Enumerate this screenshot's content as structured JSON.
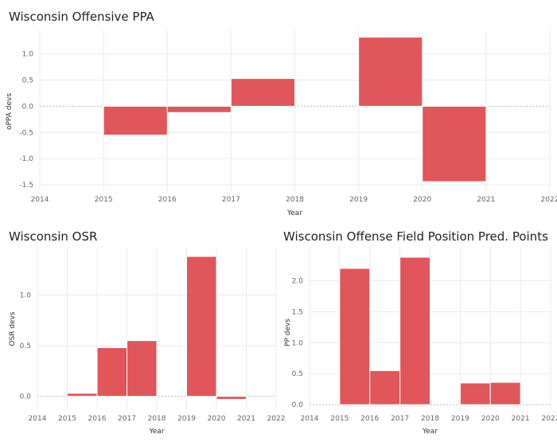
{
  "colors": {
    "bar": "#e0565b",
    "bar_edge": "#ffffff",
    "grid": "#ececec",
    "zero": "#bbbbbb"
  },
  "chart_data": [
    {
      "type": "bar",
      "title": "Wisconsin Offensive PPA",
      "xlabel": "Year",
      "ylabel": "oPPA devs",
      "x_ticks": [
        "2014",
        "2015",
        "2016",
        "2017",
        "2018",
        "2019",
        "2020",
        "2021",
        "2022"
      ],
      "y_ticks": [
        "-1.5",
        "-1.0",
        "-0.5",
        "0.0",
        "0.5",
        "1.0"
      ],
      "ylim": [
        -1.5,
        1.3
      ],
      "xlim": [
        2014,
        2022
      ],
      "grid": true,
      "bars": [
        {
          "year": 2015,
          "value": -0.55
        },
        {
          "year": 2016,
          "value": -0.12
        },
        {
          "year": 2017,
          "value": 0.53
        },
        {
          "year": 2019,
          "value": 1.32
        },
        {
          "year": 2020,
          "value": -1.44
        }
      ]
    },
    {
      "type": "bar",
      "title": "Wisconsin OSR",
      "xlabel": "Year",
      "ylabel": "OSR devs",
      "x_ticks": [
        "2014",
        "2015",
        "2016",
        "2017",
        "2018",
        "2019",
        "2020",
        "2021",
        "2022"
      ],
      "y_ticks": [
        "0.0",
        "0.5",
        "1.0"
      ],
      "ylim": [
        -0.05,
        1.38
      ],
      "xlim": [
        2014,
        2022
      ],
      "grid": true,
      "bars": [
        {
          "year": 2015,
          "value": 0.03
        },
        {
          "year": 2016,
          "value": 0.48
        },
        {
          "year": 2017,
          "value": 0.55
        },
        {
          "year": 2019,
          "value": 1.38
        },
        {
          "year": 2020,
          "value": -0.03
        }
      ]
    },
    {
      "type": "bar",
      "title": "Wisconsin Offense Field Position Pred. Points",
      "xlabel": "Year",
      "ylabel": "PP devs",
      "x_ticks": [
        "2014",
        "2015",
        "2016",
        "2017",
        "2018",
        "2019",
        "2020",
        "2021",
        "2022"
      ],
      "y_ticks": [
        "0.0",
        "0.5",
        "1.0",
        "1.5",
        "2.0"
      ],
      "ylim": [
        -0.05,
        2.38
      ],
      "xlim": [
        2014,
        2022
      ],
      "grid": true,
      "bars": [
        {
          "year": 2015,
          "value": 2.2
        },
        {
          "year": 2016,
          "value": 0.55
        },
        {
          "year": 2017,
          "value": 2.38
        },
        {
          "year": 2019,
          "value": 0.35
        },
        {
          "year": 2020,
          "value": 0.36
        }
      ]
    }
  ]
}
